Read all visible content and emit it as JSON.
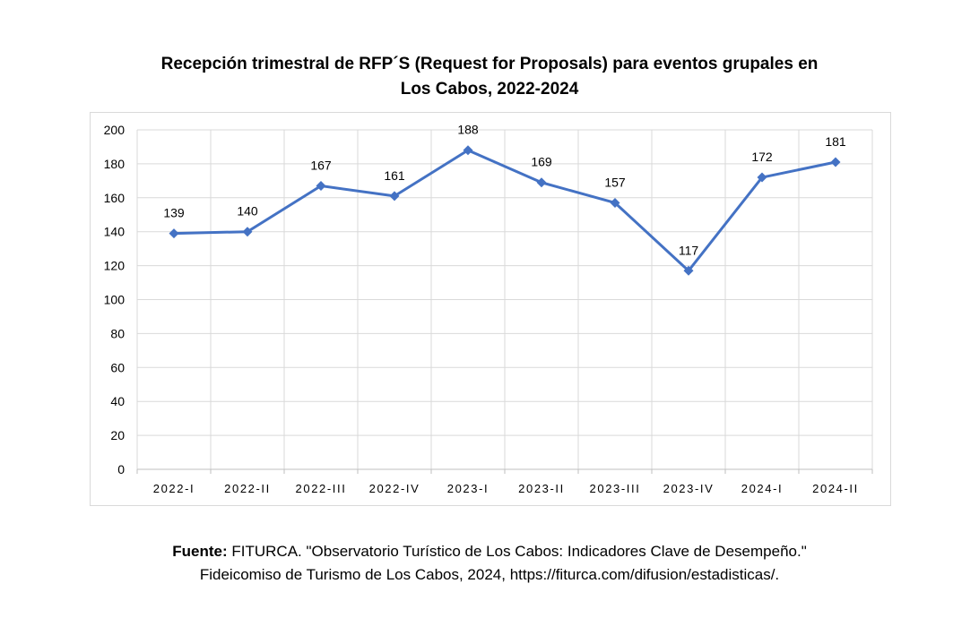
{
  "chart_data": {
    "type": "line",
    "title_line1": "Recepción trimestral de RFP´S (Request for Proposals) para eventos grupales en",
    "title_line2": "Los Cabos, 2022-2024",
    "categories": [
      "2022-I",
      "2022-II",
      "2022-III",
      "2022-IV",
      "2023-I",
      "2023-II",
      "2023-III",
      "2023-IV",
      "2024-I",
      "2024-II"
    ],
    "series": [
      {
        "values": [
          139,
          140,
          167,
          161,
          188,
          169,
          157,
          117,
          172,
          181
        ],
        "color": "#4472c4",
        "marker": "diamond"
      }
    ],
    "data_labels": [
      "139",
      "140",
      "167",
      "161",
      "188",
      "169",
      "157",
      "117",
      "172",
      "181"
    ],
    "ylim": [
      0,
      200
    ],
    "yticks": [
      0,
      20,
      40,
      60,
      80,
      100,
      120,
      140,
      160,
      180,
      200
    ],
    "grid": true,
    "legend": "none",
    "gridColor": "#d9d9d9"
  },
  "source": {
    "label": "Fuente:",
    "text_line1": " FITURCA. \"Observatorio Turístico de Los Cabos: Indicadores Clave de Desempeño.\"",
    "text_line2": "Fideicomiso de Turismo de Los Cabos, 2024, https://fiturca.com/difusion/estadisticas/."
  }
}
